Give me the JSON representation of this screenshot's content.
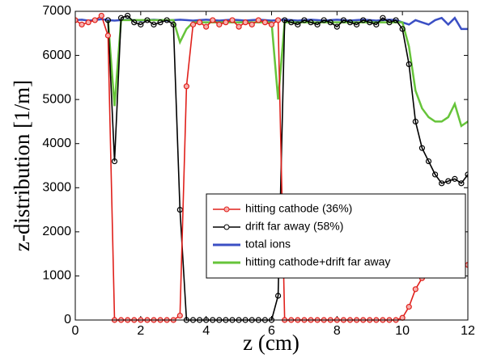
{
  "chart_data": {
    "type": "line",
    "xlabel": "z (cm)",
    "ylabel": "z-distribution [1/m]",
    "x": [
      0,
      0.2,
      0.4,
      0.6,
      0.8,
      1.0,
      1.2,
      1.4,
      1.6,
      1.8,
      2.0,
      2.2,
      2.4,
      2.6,
      2.8,
      3.0,
      3.2,
      3.4,
      3.6,
      3.8,
      4.0,
      4.2,
      4.4,
      4.6,
      4.8,
      5.0,
      5.2,
      5.4,
      5.6,
      5.8,
      6.0,
      6.2,
      6.4,
      6.6,
      6.8,
      7.0,
      7.2,
      7.4,
      7.6,
      7.8,
      8.0,
      8.2,
      8.4,
      8.6,
      8.8,
      9.0,
      9.2,
      9.4,
      9.6,
      9.8,
      10.0,
      10.2,
      10.4,
      10.6,
      10.8,
      11.0,
      11.2,
      11.4,
      11.6,
      11.8,
      12.0
    ],
    "series": [
      {
        "name": "total ions",
        "color": "#3b4fc4",
        "marker": "none",
        "values": [
          6800,
          6810,
          6790,
          6800,
          6820,
          6800,
          6790,
          6800,
          6810,
          6800,
          6790,
          6800,
          6810,
          6800,
          6790,
          6800,
          6810,
          6800,
          6790,
          6800,
          6810,
          6800,
          6790,
          6800,
          6810,
          6800,
          6790,
          6800,
          6810,
          6800,
          6790,
          6800,
          6810,
          6800,
          6790,
          6800,
          6810,
          6800,
          6790,
          6800,
          6810,
          6800,
          6790,
          6800,
          6810,
          6800,
          6790,
          6800,
          6810,
          6800,
          6750,
          6700,
          6800,
          6750,
          6700,
          6800,
          6850,
          6700,
          6850,
          6600,
          6600
        ]
      },
      {
        "name": "hitting cathode+drift far away",
        "color": "#66c43a",
        "marker": "none",
        "values": [
          null,
          null,
          null,
          null,
          null,
          6800,
          4850,
          6800,
          6800,
          6800,
          6800,
          6800,
          6800,
          6800,
          6800,
          6800,
          6300,
          6600,
          6750,
          6750,
          6750,
          6750,
          6750,
          6750,
          6750,
          6750,
          6750,
          6750,
          6750,
          6750,
          6750,
          5000,
          6750,
          6750,
          6750,
          6750,
          6750,
          6750,
          6750,
          6750,
          6750,
          6750,
          6750,
          6750,
          6750,
          6750,
          6750,
          6750,
          6750,
          6750,
          6750,
          6200,
          5200,
          4800,
          4600,
          4500,
          4500,
          4600,
          4900,
          4400,
          4500
        ]
      },
      {
        "name": "drift far away (58%)",
        "color": "#000000",
        "marker": "open",
        "values": [
          null,
          null,
          null,
          null,
          null,
          6800,
          3600,
          6850,
          6900,
          6750,
          6700,
          6800,
          6700,
          6750,
          6800,
          6700,
          2500,
          0,
          0,
          0,
          0,
          0,
          0,
          0,
          0,
          0,
          0,
          0,
          0,
          0,
          0,
          550,
          6800,
          6750,
          6700,
          6800,
          6750,
          6700,
          6800,
          6750,
          6650,
          6800,
          6750,
          6700,
          6800,
          6750,
          6700,
          6850,
          6750,
          6800,
          6600,
          5800,
          4500,
          3900,
          3600,
          3300,
          3100,
          3150,
          3200,
          3100,
          3300
        ]
      },
      {
        "name": "hitting cathode (36%)",
        "color": "#e0201b",
        "marker": "filled",
        "values": [
          6800,
          6700,
          6750,
          6800,
          6900,
          6450,
          0,
          0,
          0,
          0,
          0,
          0,
          0,
          0,
          0,
          0,
          100,
          5300,
          6700,
          6750,
          6650,
          6800,
          6700,
          6750,
          6800,
          6650,
          6750,
          6700,
          6800,
          6750,
          6700,
          6800,
          0,
          0,
          0,
          0,
          0,
          0,
          0,
          0,
          0,
          0,
          0,
          0,
          0,
          0,
          0,
          0,
          0,
          0,
          50,
          300,
          700,
          950,
          1100,
          1300,
          1400,
          1350,
          1700,
          1300,
          1250
        ]
      }
    ],
    "legend_order": [
      3,
      2,
      0,
      1
    ],
    "legend": "lower right",
    "xlim": [
      0,
      12
    ],
    "xticks": [
      0,
      2,
      4,
      6,
      8,
      10,
      12
    ],
    "ylim": [
      0,
      7000
    ],
    "yticks": [
      0,
      1000,
      2000,
      3000,
      4000,
      5000,
      6000,
      7000
    ]
  }
}
